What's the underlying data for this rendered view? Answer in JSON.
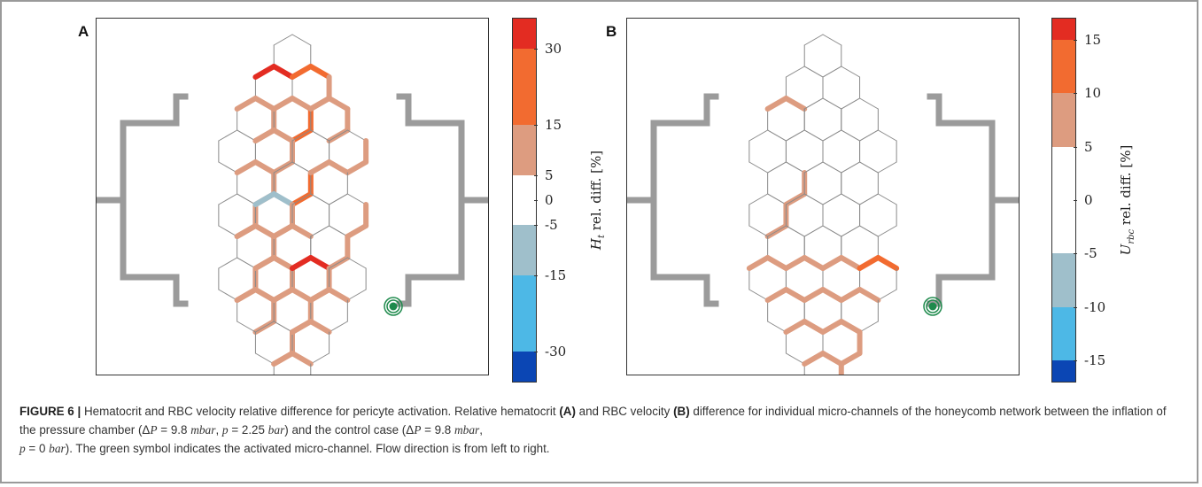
{
  "panels": [
    {
      "id": "A",
      "letter": "A",
      "colorbar": {
        "bins": [
          {
            "from": 30,
            "to": 36,
            "color": "#e32c22"
          },
          {
            "from": 15,
            "to": 30,
            "color": "#f26b30"
          },
          {
            "from": 5,
            "to": 15,
            "color": "#dd9c80"
          },
          {
            "from": -5,
            "to": 5,
            "color": "#ffffff"
          },
          {
            "from": -15,
            "to": -5,
            "color": "#9fbfcb"
          },
          {
            "from": -30,
            "to": -15,
            "color": "#4db8e6"
          },
          {
            "from": -36,
            "to": -30,
            "color": "#0b46b4"
          }
        ],
        "range": [
          -36,
          36
        ],
        "ticks": [
          "30",
          "15",
          "5",
          "0",
          "-5",
          "-15",
          "-30"
        ],
        "tick_values": [
          30,
          15,
          5,
          0,
          -5,
          -15,
          -30
        ],
        "label": "H_t rel. diff. [%]",
        "label_main": "H",
        "label_sub": "t",
        "label_rest": " rel. diff.  [%]"
      },
      "channel_values": {
        "r0": [
          0,
          2,
          2,
          0
        ],
        "r1": [
          3,
          2,
          2,
          0,
          0,
          0
        ],
        "r2": [
          1,
          1,
          1,
          0,
          0,
          1
        ],
        "r3": [
          0,
          1,
          0,
          0,
          1
        ],
        "r4": [
          1,
          0,
          1,
          0,
          1,
          0
        ],
        "r5": [
          0,
          4,
          0,
          0,
          1
        ],
        "r6": [
          1,
          1,
          0,
          1,
          1,
          0
        ],
        "r7": [
          0,
          1,
          3,
          0,
          1
        ],
        "r8": [
          1,
          1,
          1,
          1,
          1,
          0
        ],
        "r9": [
          0,
          1,
          0,
          0,
          0
        ],
        "r10": [
          1,
          1,
          1,
          1
        ],
        "v": [
          0,
          0,
          1,
          1,
          2,
          1,
          0,
          1,
          0,
          1,
          1,
          2,
          0,
          1,
          1,
          0,
          1,
          1,
          0,
          1,
          1,
          1,
          1,
          0,
          1,
          1,
          0,
          1,
          0,
          0,
          1,
          1,
          0,
          1,
          2,
          0,
          1,
          1,
          0,
          1
        ]
      }
    },
    {
      "id": "B",
      "letter": "B",
      "colorbar": {
        "bins": [
          {
            "from": 15,
            "to": 17,
            "color": "#e32c22"
          },
          {
            "from": 10,
            "to": 15,
            "color": "#f26b30"
          },
          {
            "from": 5,
            "to": 10,
            "color": "#dd9c80"
          },
          {
            "from": -5,
            "to": 5,
            "color": "#ffffff"
          },
          {
            "from": -10,
            "to": -5,
            "color": "#9fbfcb"
          },
          {
            "from": -15,
            "to": -10,
            "color": "#4db8e6"
          },
          {
            "from": -17,
            "to": -15,
            "color": "#0b46b4"
          }
        ],
        "range": [
          -17,
          17
        ],
        "ticks": [
          "15",
          "10",
          "5",
          "0",
          "-5",
          "-10",
          "-15"
        ],
        "tick_values": [
          15,
          10,
          5,
          0,
          -5,
          -10,
          -15
        ],
        "label": "U_rbc rel. diff. [%]",
        "label_main": "U",
        "label_sub": "rbc",
        "label_rest": " rel. diff.  [%]"
      },
      "channel_values": {
        "r0": [
          0,
          0,
          0,
          0
        ],
        "r1": [
          0,
          0,
          0,
          0,
          0,
          0
        ],
        "r2": [
          1,
          0,
          0,
          0,
          0,
          0
        ],
        "r3": [
          0,
          0,
          0,
          0,
          0
        ],
        "r4": [
          0,
          0,
          0,
          0,
          0,
          0
        ],
        "r5": [
          0,
          0,
          0,
          0,
          0
        ],
        "r6": [
          0,
          0,
          0,
          0,
          0,
          0
        ],
        "r7": [
          1,
          1,
          1,
          2,
          0
        ],
        "r8": [
          1,
          1,
          1,
          1,
          1,
          0
        ],
        "r9": [
          1,
          1,
          1,
          2,
          0
        ],
        "r10": [
          1,
          1,
          2,
          0
        ],
        "v": [
          0,
          0,
          0,
          0,
          0,
          0,
          0,
          0,
          0,
          0,
          1,
          0,
          0,
          1,
          0,
          0,
          0,
          0,
          0,
          0,
          0,
          0,
          0,
          0,
          0,
          0,
          0,
          0,
          1,
          1,
          1,
          2,
          0,
          1,
          3,
          0,
          1,
          1,
          0,
          0
        ]
      }
    }
  ],
  "legend_color_keys": [
    "#ffffff",
    "#dd9c80",
    "#f26b30",
    "#e32c22",
    "#9fbfcb",
    "#4db8e6",
    "#0b46b4"
  ],
  "network_color": "#9b9b9b",
  "activated_channel_color": "#1e8a4c",
  "caption": {
    "figure_label": "FIGURE 6 |",
    "part1": " Hematocrit and RBC velocity relative difference for pericyte activation. Relative hematocrit ",
    "a_ref": "(A)",
    "part2": " and RBC velocity ",
    "b_ref": "(B)",
    "part3": " difference for individual micro-channels of the honeycomb network between the inflation of the pressure chamber (Δ",
    "p_sym": "P",
    "part4": " = 9.8 ",
    "unit_mbar": "mbar",
    "part5": ", ",
    "p_low": "p",
    "part6": " = 2.25 ",
    "unit_bar": "bar",
    "part7": ") and the control case (Δ",
    "p_sym2": "P",
    "part8": " = 9.8 ",
    "unit_mbar2": "mbar",
    "part9": ",",
    "p_low2": "p",
    "part10": " = 0 ",
    "unit_bar2": "bar",
    "part11": "). The green symbol indicates the activated micro-channel. Flow direction is from left to right."
  }
}
